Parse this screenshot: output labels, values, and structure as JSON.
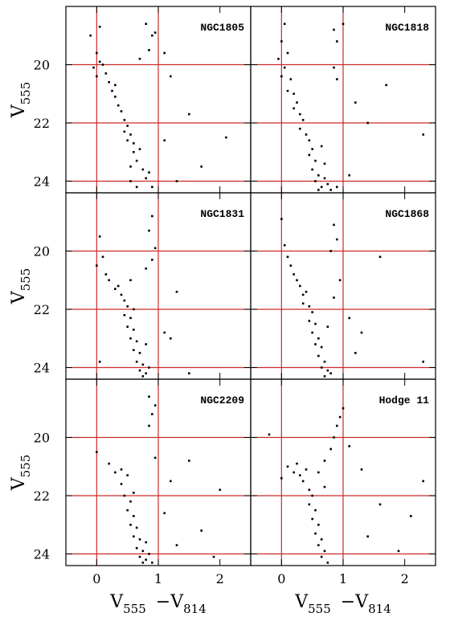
{
  "chart_data": [
    {
      "type": "scatter",
      "title": "NGC1805",
      "color": "#000000",
      "line_color": "#cc2a2a",
      "xlim": [
        -0.5,
        2.5
      ],
      "ylim": [
        24.4,
        18
      ],
      "xticks": [
        0,
        1,
        2
      ],
      "yticks": [
        20,
        22,
        24
      ],
      "hlines": [
        20,
        22,
        24
      ],
      "vlines": [
        0,
        1
      ],
      "ylabel": [
        "V",
        "555"
      ],
      "x": [
        -0.1,
        0.05,
        0,
        0.1,
        -0.05,
        0.05,
        0.15,
        0,
        0.2,
        0.25,
        0.3,
        0.3,
        0.35,
        0.4,
        0.45,
        0.45,
        0.5,
        0.5,
        0.55,
        0.55,
        0.6,
        0.6,
        0.65,
        0.7,
        0.55,
        0.75,
        0.8,
        0.65,
        0.9,
        0.85,
        0.8,
        0.9,
        0.85,
        0.95,
        0.7,
        1.1,
        1.2,
        1.5,
        1.1,
        2.1,
        1.7,
        1.3
      ],
      "values": [
        19.0,
        18.7,
        19.6,
        20.0,
        20.1,
        19.9,
        20.3,
        20.4,
        20.6,
        20.9,
        20.7,
        21.1,
        21.4,
        21.6,
        21.9,
        22.3,
        22.1,
        22.6,
        22.4,
        23.5,
        22.7,
        23.0,
        23.3,
        22.9,
        24.0,
        23.6,
        23.9,
        24.2,
        24.2,
        23.7,
        18.6,
        19.0,
        19.5,
        18.9,
        19.8,
        19.6,
        20.4,
        21.7,
        22.6,
        22.5,
        23.5,
        24.0
      ]
    },
    {
      "type": "scatter",
      "title": "NGC1818",
      "color": "#000000",
      "line_color": "#cc2a2a",
      "xlim": [
        -0.5,
        2.5
      ],
      "ylim": [
        24.4,
        18
      ],
      "xticks": [
        0,
        1,
        2
      ],
      "yticks": [
        20,
        22,
        24
      ],
      "hlines": [
        20,
        22,
        24
      ],
      "vlines": [
        0,
        1
      ],
      "x": [
        0,
        -0.05,
        0.05,
        0.1,
        0,
        0.15,
        0.1,
        0.2,
        0.25,
        0.2,
        0.3,
        0.35,
        0.3,
        0.4,
        0.45,
        0.5,
        0.45,
        0.55,
        0.5,
        0.6,
        0.55,
        0.65,
        0.6,
        0.7,
        0.65,
        0.75,
        0.7,
        0.8,
        0.85,
        0.9,
        1.0,
        0.85,
        0.9,
        1.2,
        1.7,
        1.4,
        2.3,
        1.1,
        0.9,
        0.05
      ],
      "values": [
        19.2,
        19.8,
        20.1,
        19.6,
        20.4,
        20.5,
        20.9,
        21.0,
        21.3,
        21.5,
        21.7,
        21.9,
        22.2,
        22.4,
        22.6,
        22.9,
        23.1,
        23.3,
        23.6,
        23.8,
        24.0,
        24.2,
        24.3,
        23.9,
        22.8,
        24.1,
        23.4,
        24.3,
        18.8,
        19.2,
        18.6,
        20.1,
        20.5,
        21.3,
        20.7,
        22.0,
        22.4,
        23.8,
        24.2,
        18.6
      ]
    },
    {
      "type": "scatter",
      "title": "NGC1831",
      "color": "#000000",
      "line_color": "#cc2a2a",
      "xlim": [
        -0.5,
        2.5
      ],
      "ylim": [
        24.4,
        18
      ],
      "xticks": [
        0,
        1,
        2
      ],
      "yticks": [
        20,
        22,
        24
      ],
      "hlines": [
        20,
        22,
        24
      ],
      "vlines": [
        0,
        1
      ],
      "ylabel": [
        "V",
        "555"
      ],
      "x": [
        0.05,
        0.1,
        0.0,
        0.15,
        0.2,
        0.3,
        0.35,
        0.4,
        0.45,
        0.5,
        0.45,
        0.55,
        0.5,
        0.6,
        0.55,
        0.65,
        0.6,
        0.7,
        0.65,
        0.75,
        0.7,
        0.8,
        0.75,
        0.85,
        0.8,
        0.6,
        0.9,
        0.85,
        0.95,
        0.8,
        0.9,
        1.3,
        1.1,
        0.05,
        1.5,
        1.2,
        0.55
      ],
      "values": [
        19.5,
        20.2,
        20.5,
        20.8,
        21.0,
        21.3,
        21.2,
        21.5,
        21.7,
        21.9,
        22.2,
        22.3,
        22.6,
        22.7,
        23.0,
        23.1,
        23.4,
        23.5,
        23.8,
        23.9,
        24.1,
        24.2,
        24.3,
        24.0,
        23.2,
        22.0,
        18.8,
        19.3,
        19.9,
        20.6,
        20.3,
        21.4,
        22.8,
        23.8,
        24.2,
        23.0,
        21.0
      ]
    },
    {
      "type": "scatter",
      "title": "NGC1868",
      "color": "#000000",
      "line_color": "#cc2a2a",
      "xlim": [
        -0.5,
        2.5
      ],
      "ylim": [
        24.4,
        18
      ],
      "xticks": [
        0,
        1,
        2
      ],
      "yticks": [
        20,
        22,
        24
      ],
      "hlines": [
        20,
        22,
        24
      ],
      "vlines": [
        0,
        1
      ],
      "x": [
        0.05,
        0.1,
        0.15,
        0.2,
        0.25,
        0.3,
        0.35,
        0.4,
        0.35,
        0.45,
        0.5,
        0.45,
        0.55,
        0.5,
        0.6,
        0.55,
        0.65,
        0.6,
        0.7,
        0.65,
        0.75,
        0.7,
        0.8,
        0.75,
        0.85,
        0.9,
        0.8,
        0.95,
        0.85,
        1.1,
        1.6,
        1.2,
        2.3,
        0.0,
        1.3
      ],
      "values": [
        19.8,
        20.2,
        20.5,
        20.8,
        21.0,
        21.2,
        21.5,
        21.4,
        21.8,
        21.9,
        22.1,
        22.4,
        22.5,
        22.8,
        23.0,
        23.2,
        23.3,
        23.6,
        23.8,
        24.0,
        24.1,
        24.3,
        24.2,
        22.6,
        19.1,
        19.6,
        20.0,
        21.0,
        21.6,
        22.3,
        20.2,
        23.5,
        23.8,
        18.9,
        22.8
      ]
    },
    {
      "type": "scatter",
      "title": "NGC2209",
      "color": "#000000",
      "line_color": "#cc2a2a",
      "xlim": [
        -0.5,
        2.5
      ],
      "ylim": [
        24.4,
        18
      ],
      "xticks": [
        0,
        1,
        2
      ],
      "yticks": [
        20,
        22,
        24
      ],
      "hlines": [
        20,
        22,
        24
      ],
      "vlines": [
        0,
        1
      ],
      "ylabel": [
        "V",
        "555"
      ],
      "xlabel": [
        "V",
        "555",
        "−V",
        "814"
      ],
      "x": [
        0.0,
        0.2,
        0.3,
        0.4,
        0.5,
        0.45,
        0.55,
        0.5,
        0.6,
        0.55,
        0.65,
        0.6,
        0.7,
        0.65,
        0.75,
        0.7,
        0.8,
        0.75,
        0.85,
        0.8,
        0.9,
        0.85,
        0.95,
        0.9,
        0.85,
        0.95,
        1.2,
        1.5,
        1.7,
        2.0,
        1.9,
        1.1,
        0.4,
        0.6,
        1.3
      ],
      "values": [
        20.5,
        20.9,
        21.2,
        21.6,
        21.3,
        22.0,
        22.2,
        22.5,
        22.7,
        23.0,
        23.1,
        23.4,
        23.5,
        23.8,
        23.9,
        24.1,
        24.2,
        24.3,
        24.0,
        23.6,
        24.3,
        18.6,
        18.9,
        19.2,
        19.6,
        20.7,
        21.5,
        20.8,
        23.2,
        21.8,
        24.1,
        22.6,
        21.1,
        21.9,
        23.7
      ]
    },
    {
      "type": "scatter",
      "title": "Hodge 11",
      "color": "#000000",
      "line_color": "#cc2a2a",
      "xlim": [
        -0.5,
        2.5
      ],
      "ylim": [
        24.4,
        18
      ],
      "xticks": [
        0,
        1,
        2
      ],
      "yticks": [
        20,
        22,
        24
      ],
      "hlines": [
        20,
        22,
        24
      ],
      "vlines": [
        0,
        1
      ],
      "xlabel": [
        "V",
        "555",
        "−V",
        "814"
      ],
      "x": [
        0.0,
        0.1,
        0.2,
        0.25,
        0.3,
        0.35,
        0.4,
        0.45,
        0.5,
        0.45,
        0.55,
        0.5,
        0.6,
        0.55,
        0.65,
        0.6,
        0.7,
        0.65,
        0.75,
        0.7,
        0.6,
        0.7,
        0.8,
        0.85,
        0.9,
        0.95,
        1.0,
        -0.2,
        1.3,
        1.6,
        2.1,
        2.3,
        1.4,
        1.9,
        1.1
      ],
      "values": [
        21.4,
        21.0,
        21.2,
        20.9,
        21.3,
        21.5,
        21.1,
        21.8,
        22.0,
        22.3,
        22.5,
        22.8,
        23.0,
        23.3,
        23.5,
        23.7,
        23.9,
        24.1,
        24.3,
        21.7,
        21.2,
        20.8,
        20.4,
        20.0,
        19.6,
        19.3,
        19.0,
        19.9,
        21.1,
        22.3,
        22.7,
        21.5,
        23.4,
        23.9,
        20.3
      ]
    }
  ]
}
